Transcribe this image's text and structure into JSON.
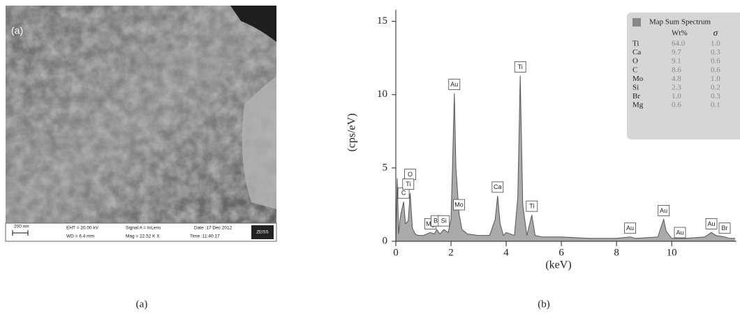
{
  "panel_a": {
    "label": "(a)",
    "caption": "(a)",
    "scale_bar": "200 nm",
    "eht": "EHT = 20.00 kV",
    "wd": "WD = 6.4 mm",
    "signal": "Signal A = InLens",
    "mag": "Mag =  22.52 K X",
    "date": "Date :17 Dec 2012",
    "time": "Time :11:40:17",
    "brand": "ZEISS"
  },
  "chart_data": {
    "type": "area",
    "caption": "(b)",
    "x_label": "(keV)",
    "y_label": "(cps/eV)",
    "color": "#aaaaaa",
    "x": [
      0,
      0.05,
      0.1,
      0.15,
      0.2,
      0.28,
      0.35,
      0.45,
      0.52,
      0.6,
      0.7,
      0.8,
      1.0,
      1.25,
      1.4,
      1.48,
      1.6,
      1.74,
      1.9,
      2.0,
      2.06,
      2.12,
      2.18,
      2.29,
      2.4,
      2.6,
      3.0,
      3.4,
      3.6,
      3.69,
      3.78,
      3.9,
      4.0,
      4.3,
      4.42,
      4.51,
      4.6,
      4.75,
      4.93,
      5.05,
      5.3,
      6,
      7,
      8,
      8.49,
      8.7,
      9.5,
      9.62,
      9.71,
      9.8,
      10.0,
      10.5,
      11.2,
      11.44,
      11.6,
      11.92,
      12.1,
      12.3
    ],
    "values": [
      0,
      4.3,
      0.5,
      1.5,
      2.0,
      2.7,
      1.2,
      1.4,
      3.3,
      0.9,
      0.5,
      0.4,
      0.4,
      0.6,
      0.5,
      0.8,
      0.5,
      0.8,
      0.6,
      1.5,
      5.5,
      10.1,
      5,
      1.9,
      0.8,
      0.5,
      0.4,
      0.4,
      1.5,
      3.1,
      1.2,
      0.4,
      0.6,
      0.4,
      3,
      11.3,
      2.5,
      0.4,
      1.8,
      0.4,
      0.3,
      0.3,
      0.2,
      0.2,
      0.3,
      0.2,
      0.3,
      1,
      1.5,
      0.7,
      0.2,
      0.2,
      0.3,
      0.6,
      0.4,
      0.3,
      0.2,
      0.2
    ],
    "xlim": [
      0,
      12.35
    ],
    "ylim": [
      0,
      15.6
    ],
    "xticks": [
      0,
      2,
      4,
      6,
      8,
      10
    ],
    "yticks": [
      0,
      5,
      10,
      15
    ],
    "peaks": [
      {
        "label": "C",
        "x": 0.28
      },
      {
        "label": "O",
        "x": 0.52
      },
      {
        "label": "Ti",
        "x": 0.45
      },
      {
        "label": "Mg",
        "x": 1.25
      },
      {
        "label": "Br",
        "x": 1.48
      },
      {
        "label": "Si",
        "x": 1.74
      },
      {
        "label": "Au",
        "x": 2.12
      },
      {
        "label": "Mo",
        "x": 2.29
      },
      {
        "label": "Ca",
        "x": 3.69
      },
      {
        "label": "Ti",
        "x": 4.51
      },
      {
        "label": "Ti",
        "x": 4.93
      },
      {
        "label": "Au",
        "x": 8.49
      },
      {
        "label": "Au",
        "x": 9.71
      },
      {
        "label": "Au",
        "x": 10.3
      },
      {
        "label": "Au",
        "x": 11.44
      },
      {
        "label": "Br",
        "x": 11.92
      }
    ],
    "legend": {
      "title": "Map Sum Spectrum",
      "headers": [
        "Wt%",
        "σ"
      ],
      "rows": [
        [
          "Ti",
          "64.0",
          "1.0"
        ],
        [
          "Ca",
          "9.7",
          "0.3"
        ],
        [
          "O",
          "9.1",
          "0.6"
        ],
        [
          "C",
          "8.6",
          "0.6"
        ],
        [
          "Mo",
          "4.8",
          "1.0"
        ],
        [
          "Si",
          "2.3",
          "0.2"
        ],
        [
          "Br",
          "1.0",
          "0.3"
        ],
        [
          "Mg",
          "0.6",
          "0.1"
        ]
      ]
    }
  }
}
